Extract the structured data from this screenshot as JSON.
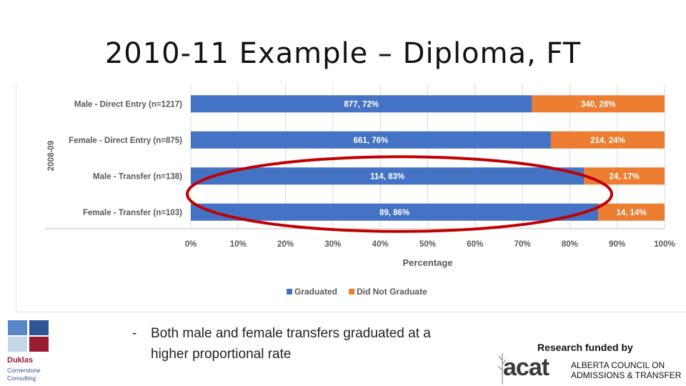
{
  "slide": {
    "title": "2010-11 Example – Diploma, FT",
    "bullet_dash": "-",
    "bullet_text": "Both male and female transfers graduated at a higher proportional rate"
  },
  "logos": {
    "left_name": "Duklas",
    "left_sub": "Cornerstone Consulting",
    "left_square_colors": [
      "#5a86c5",
      "#2f5597",
      "#c5d5ec",
      "#9b1b30"
    ],
    "funded_label": "Research funded by",
    "acat_word": "acat",
    "acat_sub": "ALBERTA COUNCIL ON ADMISSIONS & TRANSFER"
  },
  "chart_data": {
    "type": "bar",
    "orientation": "horizontal",
    "stacked": "percent",
    "group_label": "2008-09",
    "categories": [
      "Male - Direct Entry (n=1217)",
      "Female - Direct Entry (n=875)",
      "Male - Transfer (n=138)",
      "Female - Transfer (n=103)"
    ],
    "series": [
      {
        "name": "Graduated",
        "color": "#4472c4",
        "counts": [
          877,
          661,
          114,
          89
        ],
        "values": [
          72,
          76,
          83,
          86
        ],
        "data_labels": [
          "877, 72%",
          "661, 76%",
          "114, 83%",
          "89, 86%"
        ]
      },
      {
        "name": "Did Not Graduate",
        "color": "#ed7d31",
        "counts": [
          340,
          214,
          24,
          14
        ],
        "values": [
          28,
          24,
          17,
          14
        ],
        "data_labels": [
          "340, 28%",
          "214, 24%",
          "24, 17%",
          "14, 14%"
        ]
      }
    ],
    "xlabel": "Percentage",
    "xlim": [
      0,
      100
    ],
    "x_ticks": [
      "0%",
      "10%",
      "20%",
      "30%",
      "40%",
      "50%",
      "60%",
      "70%",
      "80%",
      "90%",
      "100%"
    ],
    "grid": true,
    "legend_position": "bottom",
    "annotation": {
      "shape": "ellipse",
      "color": "#c00000",
      "highlights": [
        "Male - Transfer (n=138)",
        "Female - Transfer (n=103)"
      ]
    }
  }
}
